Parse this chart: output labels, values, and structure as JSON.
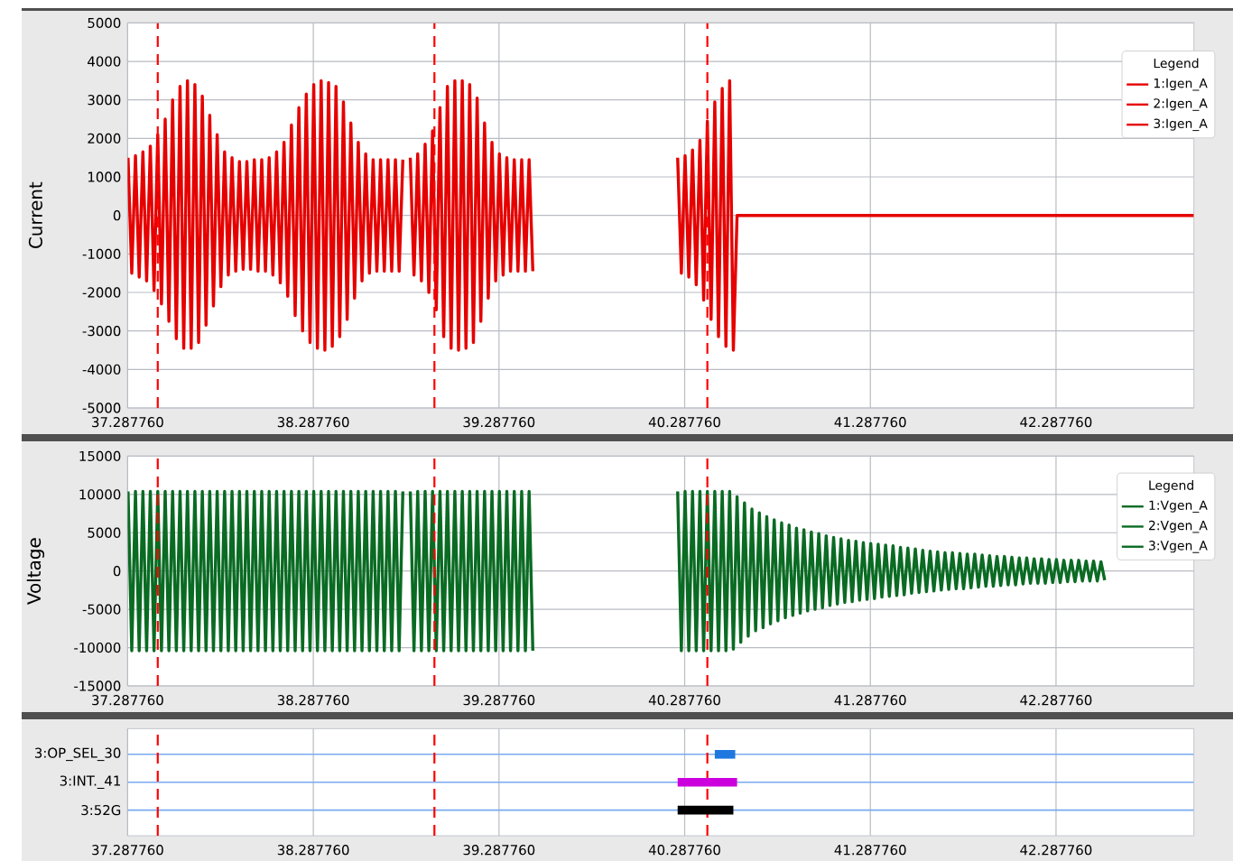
{
  "chart_data": [
    {
      "type": "line",
      "ylabel": "Current",
      "xlim": [
        37.28776,
        43.03
      ],
      "xticks": [
        {
          "value": 37.28776,
          "label": "37.287760"
        },
        {
          "value": 38.28776,
          "label": "38.287760"
        },
        {
          "value": 39.28776,
          "label": "39.287760"
        },
        {
          "value": 40.28776,
          "label": "40.287760"
        },
        {
          "value": 41.28776,
          "label": "41.287760"
        },
        {
          "value": 42.28776,
          "label": "42.287760"
        }
      ],
      "ylim": [
        -5000,
        5000
      ],
      "yticks": [
        -5000,
        -4000,
        -3000,
        -2000,
        -1000,
        0,
        1000,
        2000,
        3000,
        4000,
        5000
      ],
      "grid": true,
      "legend": "top right",
      "legend_title": "Legend",
      "ref_lines": [
        {
          "axis": "x",
          "value": 37.45,
          "color": "#ff0000",
          "line_style": "dashed"
        },
        {
          "axis": "x",
          "value": 38.94,
          "color": "#ff0000",
          "line_style": "dashed"
        },
        {
          "axis": "x",
          "value": 40.41,
          "color": "#ff0000",
          "line_style": "dashed"
        }
      ],
      "series": [
        {
          "name": "1:Igen_A",
          "color": "#e60000",
          "x": [
            37.29,
            37.31,
            37.33,
            37.35,
            37.37,
            37.39,
            37.41,
            37.43,
            37.45,
            37.47,
            37.49,
            37.51,
            37.53,
            37.55,
            37.57,
            37.59,
            37.61,
            37.63,
            37.65,
            37.67,
            37.69,
            37.71,
            37.73,
            37.75,
            37.77,
            37.79,
            37.81,
            37.83,
            37.85,
            37.87,
            37.89,
            37.91,
            37.93,
            37.95,
            37.97,
            37.99,
            38.01,
            38.03,
            38.05,
            38.07,
            38.09,
            38.11,
            38.13,
            38.15,
            38.17,
            38.19,
            38.21,
            38.23,
            38.25,
            38.27,
            38.29,
            38.31,
            38.33,
            38.35,
            38.37,
            38.39,
            38.41,
            38.43,
            38.45,
            38.47,
            38.49,
            38.51,
            38.53,
            38.55,
            38.57,
            38.59,
            38.61,
            38.63,
            38.65,
            38.67,
            38.69,
            38.71,
            38.73,
            38.75,
            38.77
          ],
          "values": [
            1500,
            -1500,
            1550,
            -1600,
            1650,
            -1700,
            1800,
            -1950,
            2100,
            -2300,
            2500,
            -2750,
            3000,
            -3200,
            3350,
            -3450,
            3500,
            -3450,
            3400,
            -3300,
            3100,
            -2850,
            2600,
            -2350,
            2100,
            -1850,
            1650,
            -1550,
            1500,
            -1450,
            1400,
            -1400,
            1400,
            -1400,
            1450,
            -1450,
            1450,
            -1450,
            1500,
            -1550,
            1650,
            -1750,
            1900,
            -2100,
            2350,
            -2600,
            2800,
            -3000,
            3150,
            -3300,
            3400,
            -3450,
            3500,
            -3500,
            3450,
            -3400,
            3350,
            -3150,
            2950,
            -2700,
            2400,
            -2150,
            1900,
            -1700,
            1600,
            -1500,
            1450,
            -1450,
            1450,
            -1450,
            1450,
            -1450,
            1450,
            -1450,
            1450
          ]
        },
        {
          "name": "2:Igen_A",
          "color": "#e60000",
          "x": [
            38.81,
            38.83,
            38.85,
            38.87,
            38.89,
            38.91,
            38.93,
            38.95,
            38.97,
            38.99,
            39.01,
            39.03,
            39.05,
            39.07,
            39.09,
            39.11,
            39.13,
            39.15,
            39.17,
            39.19,
            39.21,
            39.23,
            39.25,
            39.27,
            39.29,
            39.31,
            39.33,
            39.35,
            39.37,
            39.39,
            39.41,
            39.43,
            39.45,
            39.47
          ],
          "values": [
            1500,
            -1550,
            1600,
            -1700,
            1850,
            -2000,
            2200,
            -2450,
            2800,
            -3150,
            3350,
            -3450,
            3500,
            -3500,
            3500,
            -3450,
            3400,
            -3300,
            3050,
            -2750,
            2400,
            -2150,
            1900,
            -1700,
            1600,
            -1550,
            1500,
            -1450,
            1450,
            -1450,
            1450,
            -1450,
            1450,
            -1450
          ]
        },
        {
          "name": "3:Igen_A",
          "color": "#e60000",
          "x": [
            40.25,
            40.27,
            40.29,
            40.31,
            40.33,
            40.35,
            40.37,
            40.39,
            40.41,
            40.43,
            40.45,
            40.47,
            40.49,
            40.51,
            40.53,
            40.55,
            40.57,
            43.03
          ],
          "values": [
            1500,
            -1500,
            1550,
            -1600,
            1700,
            -1800,
            1950,
            -2200,
            2450,
            -2700,
            2950,
            -3150,
            3300,
            -3400,
            3500,
            -3500,
            0,
            0
          ]
        }
      ]
    },
    {
      "type": "line",
      "ylabel": "Voltage",
      "xlim": [
        37.28776,
        43.03
      ],
      "xticks": [
        {
          "value": 37.28776,
          "label": "37.287760"
        },
        {
          "value": 38.28776,
          "label": "38.287760"
        },
        {
          "value": 39.28776,
          "label": "39.287760"
        },
        {
          "value": 40.28776,
          "label": "40.287760"
        },
        {
          "value": 41.28776,
          "label": "41.287760"
        },
        {
          "value": 42.28776,
          "label": "42.287760"
        }
      ],
      "ylim": [
        -15000,
        15000
      ],
      "yticks": [
        -15000,
        -10000,
        -5000,
        0,
        5000,
        10000,
        15000
      ],
      "grid": true,
      "legend": "top right",
      "legend_title": "Legend",
      "ref_lines": [
        {
          "axis": "x",
          "value": 37.45,
          "color": "#ff0000",
          "line_style": "dashed"
        },
        {
          "axis": "x",
          "value": 38.94,
          "color": "#ff0000",
          "line_style": "dashed"
        },
        {
          "axis": "x",
          "value": 40.41,
          "color": "#ff0000",
          "line_style": "dashed"
        }
      ],
      "series": [
        {
          "name": "1:Vgen_A",
          "color": "#0a6b23",
          "x": [
            37.29,
            37.31,
            37.33,
            37.35,
            37.37,
            37.39,
            37.41,
            37.43,
            37.45,
            37.47,
            37.49,
            37.51,
            37.53,
            37.55,
            37.57,
            37.59,
            37.61,
            37.63,
            37.65,
            37.67,
            37.69,
            37.71,
            37.73,
            37.75,
            37.77,
            37.79,
            37.81,
            37.83,
            37.85,
            37.87,
            37.89,
            37.91,
            37.93,
            37.95,
            37.97,
            37.99,
            38.01,
            38.03,
            38.05,
            38.07,
            38.09,
            38.11,
            38.13,
            38.15,
            38.17,
            38.19,
            38.21,
            38.23,
            38.25,
            38.27,
            38.29,
            38.31,
            38.33,
            38.35,
            38.37,
            38.39,
            38.41,
            38.43,
            38.45,
            38.47,
            38.49,
            38.51,
            38.53,
            38.55,
            38.57,
            38.59,
            38.61,
            38.63,
            38.65,
            38.67,
            38.69,
            38.71,
            38.73,
            38.75,
            38.77
          ],
          "values": [
            10400,
            -10400,
            10400,
            -10400,
            10400,
            -10400,
            10400,
            -10400,
            10400,
            -10400,
            10400,
            -10400,
            10400,
            -10400,
            10400,
            -10400,
            10400,
            -10400,
            10400,
            -10400,
            10400,
            -10400,
            10400,
            -10400,
            10400,
            -10400,
            10400,
            -10400,
            10400,
            -10400,
            10400,
            -10400,
            10400,
            -10400,
            10400,
            -10400,
            10400,
            -10400,
            10400,
            -10400,
            10400,
            -10400,
            10400,
            -10400,
            10400,
            -10400,
            10400,
            -10400,
            10400,
            -10400,
            10400,
            -10400,
            10400,
            -10400,
            10400,
            -10400,
            10400,
            -10400,
            10400,
            -10400,
            10400,
            -10400,
            10400,
            -10400,
            10400,
            -10400,
            10400,
            -10400,
            10400,
            -10400,
            10400,
            -10400,
            10400,
            -10400,
            10400
          ]
        },
        {
          "name": "2:Vgen_A",
          "color": "#0a6b23",
          "x": [
            38.81,
            38.83,
            38.85,
            38.87,
            38.89,
            38.91,
            38.93,
            38.95,
            38.97,
            38.99,
            39.01,
            39.03,
            39.05,
            39.07,
            39.09,
            39.11,
            39.13,
            39.15,
            39.17,
            39.19,
            39.21,
            39.23,
            39.25,
            39.27,
            39.29,
            39.31,
            39.33,
            39.35,
            39.37,
            39.39,
            39.41,
            39.43,
            39.45,
            39.47
          ],
          "values": [
            10400,
            -10400,
            10400,
            -10400,
            10400,
            -10400,
            10400,
            -10400,
            10400,
            -10400,
            10400,
            -10400,
            10400,
            -10400,
            10400,
            -10400,
            10400,
            -10400,
            10400,
            -10400,
            10400,
            -10400,
            10400,
            -10400,
            10400,
            -10400,
            10400,
            -10400,
            10400,
            -10400,
            10400,
            -10400,
            10400,
            -10400
          ]
        },
        {
          "name": "3:Vgen_A",
          "color": "#0a6b23",
          "x": [
            40.25,
            40.27,
            40.29,
            40.31,
            40.33,
            40.35,
            40.37,
            40.39,
            40.41,
            40.43,
            40.45,
            40.47,
            40.49,
            40.51,
            40.53,
            40.55,
            40.57,
            40.59,
            40.61,
            40.63,
            40.65,
            40.67,
            40.69,
            40.71,
            40.73,
            40.75,
            40.77,
            40.79,
            40.81,
            40.83,
            40.85,
            40.87,
            40.89,
            40.91,
            40.93,
            40.95,
            40.97,
            40.99,
            41.01,
            41.03,
            41.05,
            41.07,
            41.09,
            41.11,
            41.13,
            41.15,
            41.17,
            41.19,
            41.21,
            41.23,
            41.25,
            41.27,
            41.29,
            41.31,
            41.33,
            41.35,
            41.37,
            41.39,
            41.41,
            41.43,
            41.45,
            41.47,
            41.49,
            41.51,
            41.53,
            41.55,
            41.57,
            41.59,
            41.61,
            41.63,
            41.65,
            41.67,
            41.69,
            41.71,
            41.73,
            41.75,
            41.77,
            41.79,
            41.81,
            41.83,
            41.85,
            41.87,
            41.89,
            41.91,
            41.93,
            41.95,
            41.97,
            41.99,
            42.01,
            42.03,
            42.05,
            42.07,
            42.09,
            42.11,
            42.13,
            42.15,
            42.17,
            42.19,
            42.21,
            42.23,
            42.25,
            42.27,
            42.29,
            42.31,
            42.33,
            42.35,
            42.37,
            42.39,
            42.41,
            42.43,
            42.45,
            42.47,
            42.49,
            42.51,
            42.53,
            42.55
          ],
          "values": [
            10400,
            -10400,
            10400,
            -10400,
            10400,
            -10400,
            10400,
            -10400,
            10400,
            -10400,
            10400,
            -10400,
            10400,
            -10400,
            10400,
            -10200,
            9700,
            -9300,
            8900,
            -8500,
            8100,
            -7800,
            7600,
            -7400,
            7100,
            -6900,
            6700,
            -6500,
            6300,
            -6100,
            6000,
            -5800,
            5600,
            -5500,
            5400,
            -5200,
            5100,
            -5000,
            4900,
            -4800,
            4600,
            -4500,
            4400,
            -4300,
            4200,
            -4100,
            4000,
            -4000,
            3900,
            -3800,
            3700,
            -3700,
            3600,
            -3600,
            3500,
            -3400,
            3400,
            -3300,
            3300,
            -3200,
            3100,
            -3100,
            3000,
            -2900,
            2900,
            -2800,
            2700,
            -2700,
            2600,
            -2600,
            2500,
            -2500,
            2400,
            -2400,
            2400,
            -2300,
            2300,
            -2300,
            2200,
            -2200,
            2200,
            -2100,
            2100,
            -2000,
            2000,
            -2000,
            1900,
            -1900,
            1900,
            -1800,
            1800,
            -1800,
            1700,
            -1700,
            1700,
            -1600,
            1600,
            -1600,
            1600,
            -1600,
            1500,
            -1500,
            1500,
            -1500,
            1400,
            -1400,
            1400,
            -1400,
            1400,
            -1300,
            1300,
            -1300,
            1300,
            -1300,
            1200,
            -1200
          ]
        }
      ]
    },
    {
      "type": "bar",
      "orientation": "horizontal",
      "categories": [
        "3:OP_SEL_30",
        "3:INT._41",
        "3:52G"
      ],
      "base": [
        40.45,
        40.25,
        40.25
      ],
      "values": [
        0.11,
        0.32,
        0.3
      ],
      "colors": [
        "#1f77e0",
        "#cc00dd",
        "#000000"
      ],
      "xlim": [
        37.28776,
        43.03
      ],
      "xticks": [
        {
          "value": 37.28776,
          "label": "37.287760"
        },
        {
          "value": 38.28776,
          "label": "38.287760"
        },
        {
          "value": 39.28776,
          "label": "39.287760"
        },
        {
          "value": 40.28776,
          "label": "40.287760"
        },
        {
          "value": 41.28776,
          "label": "41.287760"
        },
        {
          "value": 42.28776,
          "label": "42.287760"
        }
      ],
      "grid": true,
      "ref_lines": [
        {
          "axis": "x",
          "value": 37.45,
          "color": "#ff0000",
          "line_style": "dashed"
        },
        {
          "axis": "x",
          "value": 38.94,
          "color": "#ff0000",
          "line_style": "dashed"
        },
        {
          "axis": "x",
          "value": 40.41,
          "color": "#ff0000",
          "line_style": "dashed"
        }
      ]
    }
  ]
}
